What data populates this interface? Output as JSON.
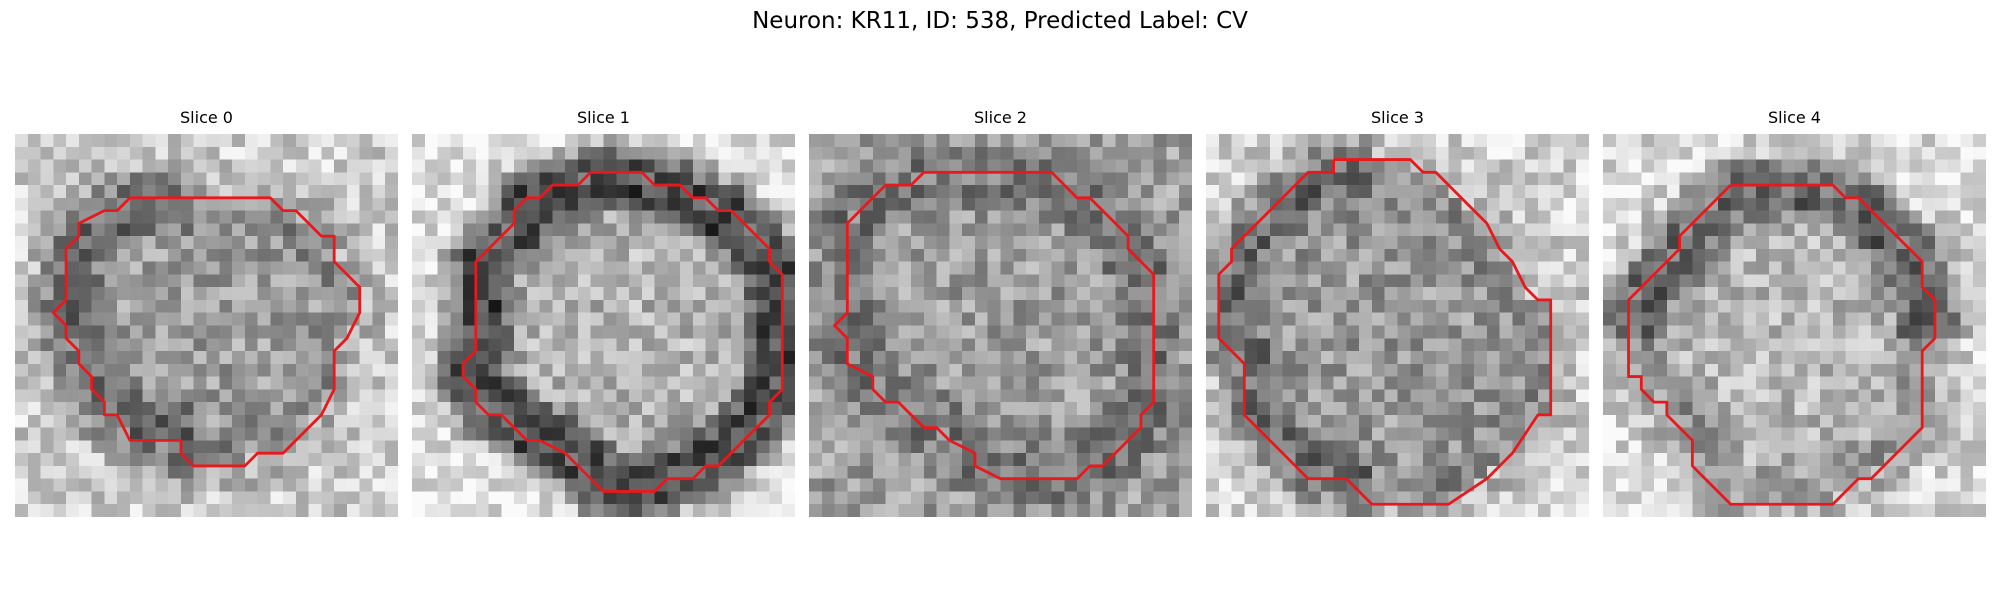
{
  "figure": {
    "title": "Neuron: KR11, ID: 538, Predicted Label: CV"
  },
  "grid_size": 30,
  "colors": {
    "outline": "#e8181c",
    "background": "#ffffff"
  },
  "slices": [
    {
      "title": "Slice 0",
      "bright_value": 0.8,
      "inner_value": 0.62,
      "dark_band": 0.28,
      "band_strength": 0.45,
      "dark_side": "left",
      "outline": [
        [
          10,
          5
        ],
        [
          20,
          5
        ],
        [
          21,
          6
        ],
        [
          22,
          6
        ],
        [
          24,
          8
        ],
        [
          25,
          8
        ],
        [
          25,
          10
        ],
        [
          26,
          11
        ],
        [
          27,
          12
        ],
        [
          27,
          14
        ],
        [
          26,
          16
        ],
        [
          25,
          17
        ],
        [
          25,
          20
        ],
        [
          24,
          22
        ],
        [
          22,
          24
        ],
        [
          21,
          25
        ],
        [
          19,
          25
        ],
        [
          18,
          26
        ],
        [
          14,
          26
        ],
        [
          13,
          25
        ],
        [
          13,
          24
        ],
        [
          9,
          24
        ],
        [
          8,
          22
        ],
        [
          7,
          22
        ],
        [
          7,
          21
        ],
        [
          6,
          20
        ],
        [
          6,
          19
        ],
        [
          5,
          18
        ],
        [
          5,
          17
        ],
        [
          4,
          16
        ],
        [
          4,
          15
        ],
        [
          3,
          14
        ],
        [
          4,
          13
        ],
        [
          4,
          9
        ],
        [
          5,
          8
        ],
        [
          5,
          7
        ],
        [
          7,
          6
        ],
        [
          8,
          6
        ],
        [
          9,
          5
        ],
        [
          10,
          5
        ]
      ]
    },
    {
      "title": "Slice 1",
      "bright_value": 0.88,
      "inner_value": 0.7,
      "dark_band": 0.14,
      "band_strength": 0.7,
      "dark_side": "all",
      "outline": [
        [
          14,
          3
        ],
        [
          18,
          3
        ],
        [
          19,
          4
        ],
        [
          21,
          4
        ],
        [
          22,
          5
        ],
        [
          23,
          5
        ],
        [
          24,
          6
        ],
        [
          25,
          6
        ],
        [
          26,
          7
        ],
        [
          27,
          8
        ],
        [
          28,
          9
        ],
        [
          28,
          10
        ],
        [
          29,
          11
        ],
        [
          29,
          20
        ],
        [
          28,
          21
        ],
        [
          28,
          22
        ],
        [
          26,
          24
        ],
        [
          24,
          26
        ],
        [
          23,
          26
        ],
        [
          22,
          27
        ],
        [
          20,
          27
        ],
        [
          19,
          28
        ],
        [
          15,
          28
        ],
        [
          14,
          27
        ],
        [
          13,
          26
        ],
        [
          12,
          25
        ],
        [
          10,
          24
        ],
        [
          9,
          24
        ],
        [
          8,
          23
        ],
        [
          7,
          22
        ],
        [
          6,
          22
        ],
        [
          5,
          21
        ],
        [
          5,
          20
        ],
        [
          4,
          19
        ],
        [
          4,
          18
        ],
        [
          5,
          17
        ],
        [
          5,
          10
        ],
        [
          6,
          9
        ],
        [
          7,
          8
        ],
        [
          8,
          7
        ],
        [
          8,
          6
        ],
        [
          9,
          5
        ],
        [
          10,
          5
        ],
        [
          11,
          4
        ],
        [
          13,
          4
        ],
        [
          14,
          3
        ]
      ]
    },
    {
      "title": "Slice 2",
      "bright_value": 0.62,
      "inner_value": 0.62,
      "dark_band": 0.3,
      "band_strength": 0.3,
      "dark_side": "all",
      "outline": [
        [
          10,
          3
        ],
        [
          19,
          3
        ],
        [
          20,
          4
        ],
        [
          21,
          5
        ],
        [
          22,
          5
        ],
        [
          23,
          6
        ],
        [
          24,
          7
        ],
        [
          25,
          8
        ],
        [
          25,
          9
        ],
        [
          26,
          10
        ],
        [
          27,
          11
        ],
        [
          27,
          21
        ],
        [
          26,
          22
        ],
        [
          26,
          23
        ],
        [
          24,
          25
        ],
        [
          23,
          26
        ],
        [
          22,
          26
        ],
        [
          21,
          27
        ],
        [
          15,
          27
        ],
        [
          13,
          26
        ],
        [
          13,
          25
        ],
        [
          11,
          24
        ],
        [
          10,
          23
        ],
        [
          9,
          23
        ],
        [
          8,
          22
        ],
        [
          7,
          21
        ],
        [
          6,
          21
        ],
        [
          5,
          20
        ],
        [
          5,
          19
        ],
        [
          3,
          18
        ],
        [
          3,
          16
        ],
        [
          2,
          15
        ],
        [
          3,
          14
        ],
        [
          3,
          7
        ],
        [
          4,
          6
        ],
        [
          5,
          5
        ],
        [
          6,
          4
        ],
        [
          8,
          4
        ],
        [
          9,
          3
        ],
        [
          10,
          3
        ]
      ]
    },
    {
      "title": "Slice 3",
      "bright_value": 0.82,
      "inner_value": 0.6,
      "dark_band": 0.32,
      "band_strength": 0.4,
      "dark_side": "left",
      "outline": [
        [
          10,
          2
        ],
        [
          16,
          2
        ],
        [
          17,
          3
        ],
        [
          18,
          3
        ],
        [
          20,
          5
        ],
        [
          22,
          7
        ],
        [
          23,
          9
        ],
        [
          24,
          10
        ],
        [
          25,
          12
        ],
        [
          26,
          13
        ],
        [
          27,
          13
        ],
        [
          27,
          22
        ],
        [
          26,
          22
        ],
        [
          24,
          25
        ],
        [
          23,
          26
        ],
        [
          22,
          27
        ],
        [
          19,
          29
        ],
        [
          13,
          29
        ],
        [
          12,
          28
        ],
        [
          11,
          27
        ],
        [
          8,
          27
        ],
        [
          7,
          26
        ],
        [
          6,
          25
        ],
        [
          5,
          24
        ],
        [
          4,
          23
        ],
        [
          3,
          22
        ],
        [
          3,
          18
        ],
        [
          2,
          17
        ],
        [
          1,
          16
        ],
        [
          1,
          11
        ],
        [
          2,
          10
        ],
        [
          2,
          9
        ],
        [
          3,
          8
        ],
        [
          4,
          7
        ],
        [
          5,
          6
        ],
        [
          6,
          5
        ],
        [
          7,
          4
        ],
        [
          8,
          3
        ],
        [
          10,
          3
        ],
        [
          10,
          2
        ]
      ]
    },
    {
      "title": "Slice 4",
      "bright_value": 0.85,
      "inner_value": 0.72,
      "dark_band": 0.22,
      "band_strength": 0.55,
      "dark_side": "top",
      "outline": [
        [
          10,
          4
        ],
        [
          18,
          4
        ],
        [
          19,
          5
        ],
        [
          20,
          5
        ],
        [
          22,
          7
        ],
        [
          23,
          8
        ],
        [
          24,
          9
        ],
        [
          25,
          10
        ],
        [
          25,
          12
        ],
        [
          26,
          13
        ],
        [
          26,
          16
        ],
        [
          25,
          17
        ],
        [
          25,
          23
        ],
        [
          24,
          24
        ],
        [
          23,
          25
        ],
        [
          21,
          27
        ],
        [
          20,
          27
        ],
        [
          19,
          28
        ],
        [
          18,
          29
        ],
        [
          10,
          29
        ],
        [
          9,
          28
        ],
        [
          8,
          27
        ],
        [
          7,
          26
        ],
        [
          7,
          24
        ],
        [
          6,
          23
        ],
        [
          5,
          22
        ],
        [
          5,
          21
        ],
        [
          4,
          21
        ],
        [
          3,
          20
        ],
        [
          3,
          19
        ],
        [
          2,
          19
        ],
        [
          2,
          13
        ],
        [
          3,
          12
        ],
        [
          4,
          11
        ],
        [
          5,
          10
        ],
        [
          6,
          9
        ],
        [
          6,
          8
        ],
        [
          7,
          7
        ],
        [
          8,
          6
        ],
        [
          9,
          5
        ],
        [
          10,
          4
        ]
      ]
    }
  ]
}
